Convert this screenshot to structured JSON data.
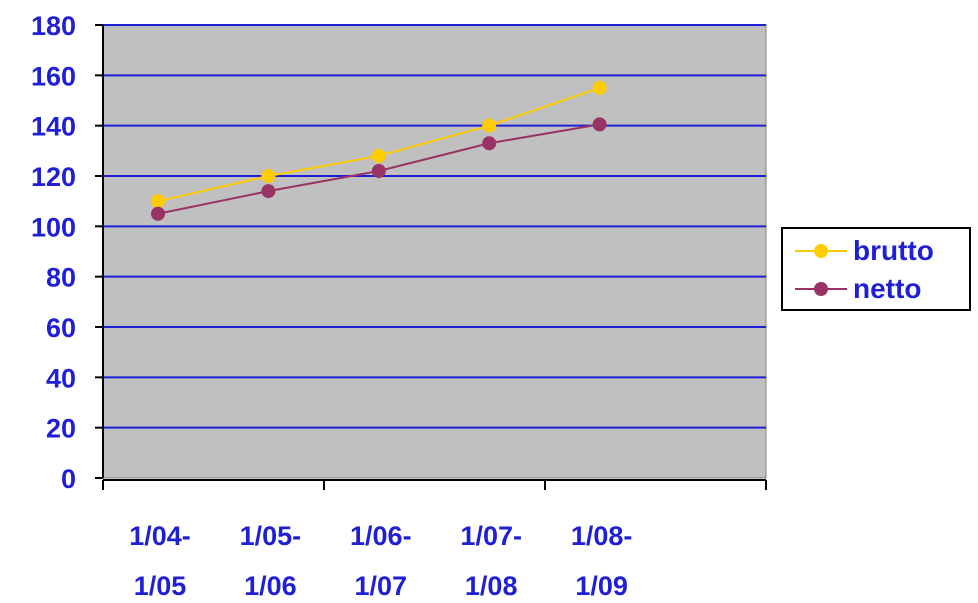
{
  "chart_data": {
    "type": "line",
    "categories": [
      [
        "1/04-",
        "1/05"
      ],
      [
        "1/05-",
        "1/06"
      ],
      [
        "1/06-",
        "1/07"
      ],
      [
        "1/07-",
        "1/08"
      ],
      [
        "1/08-",
        "1/09"
      ]
    ],
    "series": [
      {
        "name": "brutto",
        "values": [
          110,
          120,
          128,
          140,
          155
        ],
        "color": "#ffcc00"
      },
      {
        "name": "netto",
        "values": [
          105,
          114,
          122,
          133,
          140.5
        ],
        "color": "#993366"
      }
    ],
    "ylim": [
      0,
      180
    ],
    "yticks": [
      0,
      20,
      40,
      60,
      80,
      100,
      120,
      140,
      160,
      180
    ],
    "grid": true,
    "legend": "right",
    "plot_background": "#c0c0c0",
    "gridline_color": "#1f1fd6",
    "label_color": "#1f1fd6"
  }
}
